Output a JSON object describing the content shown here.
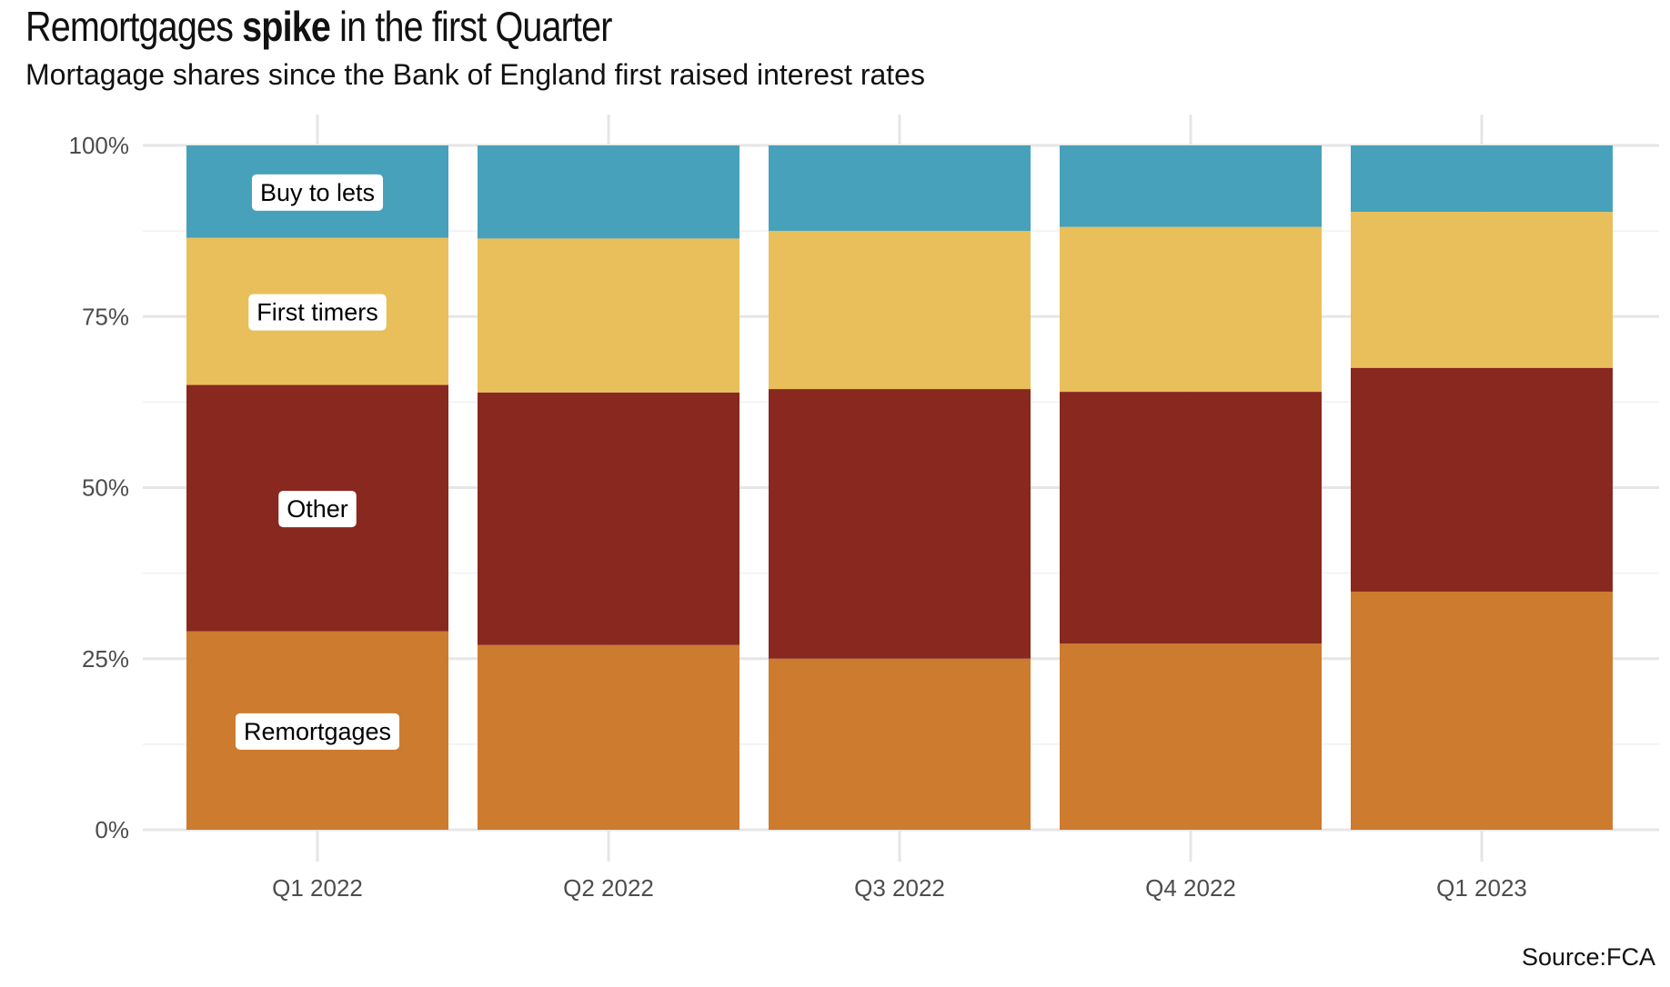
{
  "title": {
    "part1": "Remortgages ",
    "bold": "spike",
    "part2": " in the first Quarter"
  },
  "subtitle": "Mortagage shares since the Bank of England first raised interest rates",
  "caption": "Source:FCA",
  "chart_data": {
    "type": "bar",
    "stacked": true,
    "percent": true,
    "categories": [
      "Q1 2022",
      "Q2 2022",
      "Q3 2022",
      "Q4 2022",
      "Q1 2023"
    ],
    "series": [
      {
        "name": "Remortgages",
        "color": "#CD7B2E",
        "values": [
          29.0,
          27.0,
          25.0,
          27.2,
          34.8
        ]
      },
      {
        "name": "Other",
        "color": "#88281F",
        "values": [
          36.0,
          36.9,
          39.4,
          36.8,
          32.7
        ]
      },
      {
        "name": "First timers",
        "color": "#E8BF5A",
        "values": [
          21.5,
          22.5,
          23.1,
          24.1,
          22.8
        ]
      },
      {
        "name": "Buy to lets",
        "color": "#47A1BB",
        "values": [
          13.5,
          13.6,
          12.5,
          11.9,
          9.7
        ]
      }
    ],
    "ylim": [
      0,
      100
    ],
    "yticks": [
      0,
      25,
      50,
      75,
      100
    ],
    "ytick_labels": [
      "0%",
      "25%",
      "50%",
      "75%",
      "100%"
    ],
    "grid": true,
    "labels_on_category": "Q1 2022"
  }
}
